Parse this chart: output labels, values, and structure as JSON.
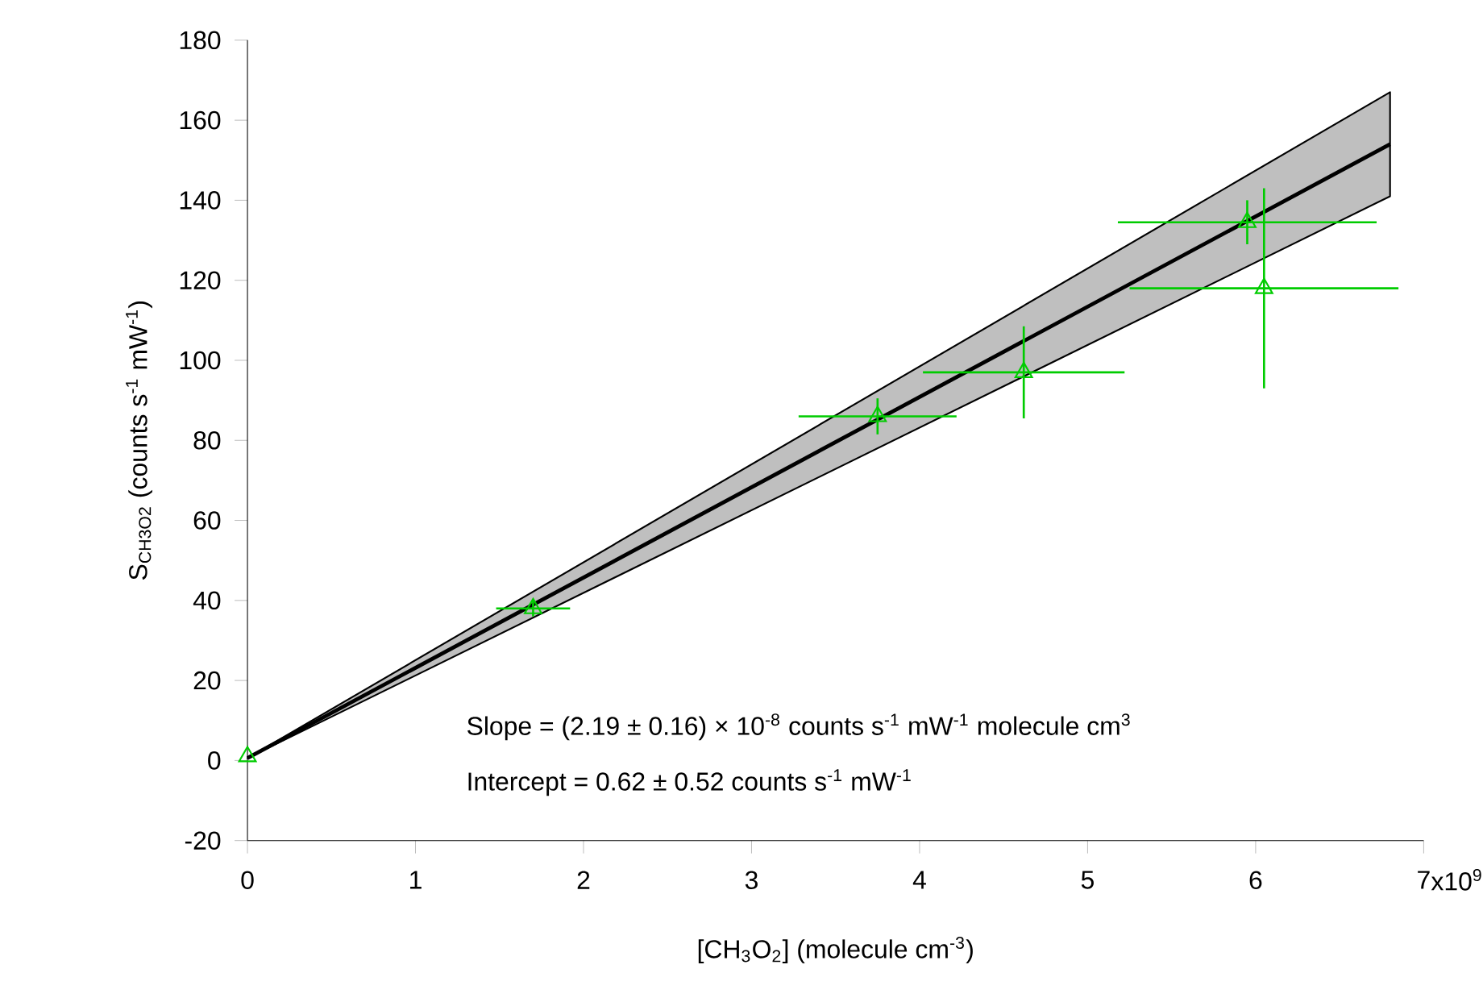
{
  "chart_data": {
    "type": "scatter",
    "xlabel": "[CH$_{3}$O$_{2}$] (molecule cm$^{-3}$)",
    "ylabel": "S$_{CH3O2}$ (counts s$^{-1}$ mW$^{-1}$)",
    "xlim": [
      0,
      7
    ],
    "ylim": [
      -20,
      180
    ],
    "xticks": [
      0,
      1,
      2,
      3,
      4,
      5,
      6,
      7
    ],
    "yticks": [
      -20,
      0,
      20,
      40,
      60,
      80,
      100,
      120,
      140,
      160,
      180
    ],
    "annotations": [
      "Slope = (2.19 ± 0.16) × 10$^{-8}$ counts s$^{-1}$ mW$^{-1}$ molecule cm$^{3}$",
      "Intercept = 0.62 ± 0.52 counts s$^{-1}$ mW$^{-1}$",
      "x10$^{9}$"
    ],
    "series": [
      {
        "type": "line",
        "marker": "none",
        "color": "#000000",
        "x": [
          0,
          6.8
        ],
        "values": [
          0.6,
          154
        ],
        "lower": [
          0.6,
          141
        ],
        "upper": [
          0.6,
          167
        ]
      },
      {
        "marker": "triangle",
        "color": "#00cc00",
        "x": [
          0,
          1.7,
          3.75,
          4.62,
          5.95,
          6.05
        ],
        "values": [
          1,
          38,
          86,
          97,
          134.5,
          118
        ],
        "errors": [
          null,
          2,
          4.5,
          11.5,
          5.5,
          25
        ],
        "xerrors": [
          null,
          0.22,
          0.47,
          0.6,
          0.77,
          0.8
        ]
      }
    ]
  }
}
